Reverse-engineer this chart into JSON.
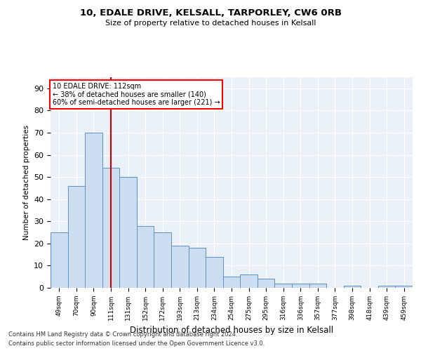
{
  "title1": "10, EDALE DRIVE, KELSALL, TARPORLEY, CW6 0RB",
  "title2": "Size of property relative to detached houses in Kelsall",
  "xlabel": "Distribution of detached houses by size in Kelsall",
  "ylabel": "Number of detached properties",
  "footnote1": "Contains HM Land Registry data © Crown copyright and database right 2024.",
  "footnote2": "Contains public sector information licensed under the Open Government Licence v3.0.",
  "categories": [
    "49sqm",
    "70sqm",
    "90sqm",
    "111sqm",
    "131sqm",
    "152sqm",
    "172sqm",
    "193sqm",
    "213sqm",
    "234sqm",
    "254sqm",
    "275sqm",
    "295sqm",
    "316sqm",
    "336sqm",
    "357sqm",
    "377sqm",
    "398sqm",
    "418sqm",
    "439sqm",
    "459sqm"
  ],
  "bar_heights": [
    25,
    46,
    70,
    54,
    50,
    28,
    25,
    19,
    18,
    14,
    5,
    6,
    4,
    2,
    2,
    2,
    0,
    1,
    0,
    1,
    1
  ],
  "bar_color": "#ccddf0",
  "bar_edge_color": "#5b8fc9",
  "vline_position": 3.0,
  "vline_color": "#cc0000",
  "ylim_max": 95,
  "yticks": [
    0,
    10,
    20,
    30,
    40,
    50,
    60,
    70,
    80,
    90
  ],
  "annotation_line1": "10 EDALE DRIVE: 112sqm",
  "annotation_line2": "← 38% of detached houses are smaller (140)",
  "annotation_line3": "60% of semi-detached houses are larger (221) →",
  "bg_color": "#eaf0f8"
}
